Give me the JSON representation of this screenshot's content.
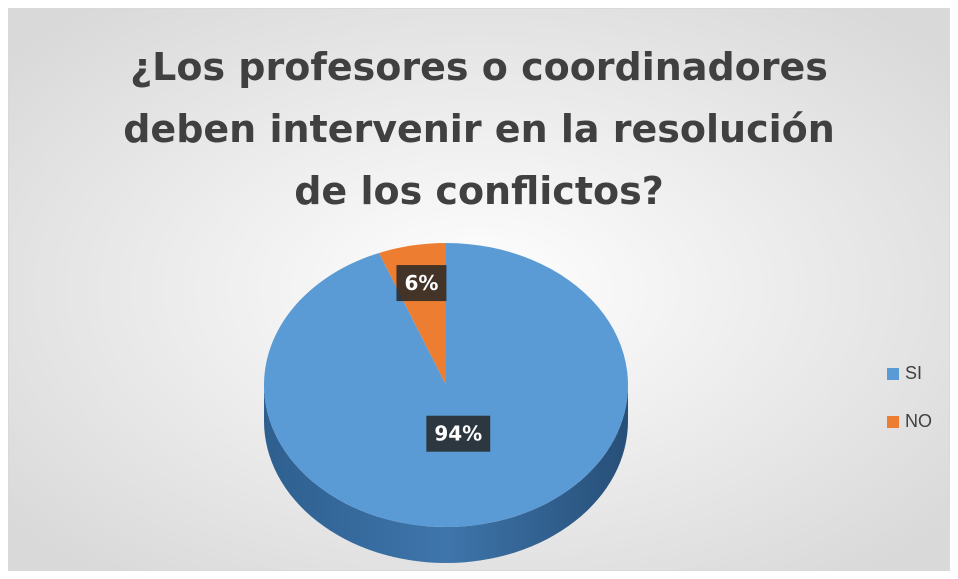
{
  "chart_data": {
    "type": "pie",
    "title": "¿Los profesores o coordinadores deben intervenir en la resolución de los conflictos?",
    "categories": [
      "SI",
      "NO"
    ],
    "values": [
      94,
      6
    ],
    "value_labels": [
      "94%",
      "6%"
    ],
    "colors": [
      "#5b9bd5",
      "#ed7d31"
    ],
    "legend": "right"
  }
}
